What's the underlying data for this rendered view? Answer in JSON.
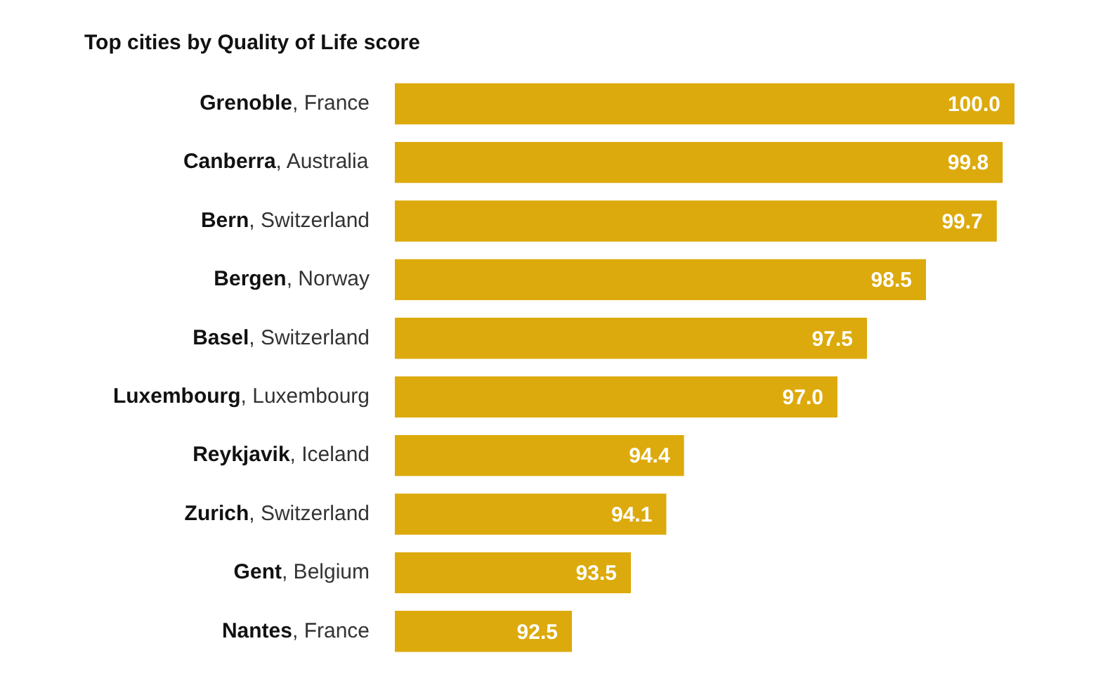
{
  "chart_data": {
    "type": "bar",
    "orientation": "horizontal",
    "title": "Top cities by Quality of Life score",
    "categories": [
      "Grenoble, France",
      "Canberra, Australia",
      "Bern, Switzerland",
      "Bergen, Norway",
      "Basel, Switzerland",
      "Luxembourg, Luxembourg",
      "Reykjavik, Iceland",
      "Zurich, Switzerland",
      "Gent, Belgium",
      "Nantes, France"
    ],
    "values": [
      100.0,
      99.8,
      99.7,
      98.5,
      97.5,
      97.0,
      94.4,
      94.1,
      93.5,
      92.5
    ],
    "value_labels": [
      "100.0",
      "99.8",
      "99.7",
      "98.5",
      "97.5",
      "97.0",
      "94.4",
      "94.1",
      "93.5",
      "92.5"
    ],
    "color": "#dcaa0c",
    "tick_labels": "y"
  }
}
